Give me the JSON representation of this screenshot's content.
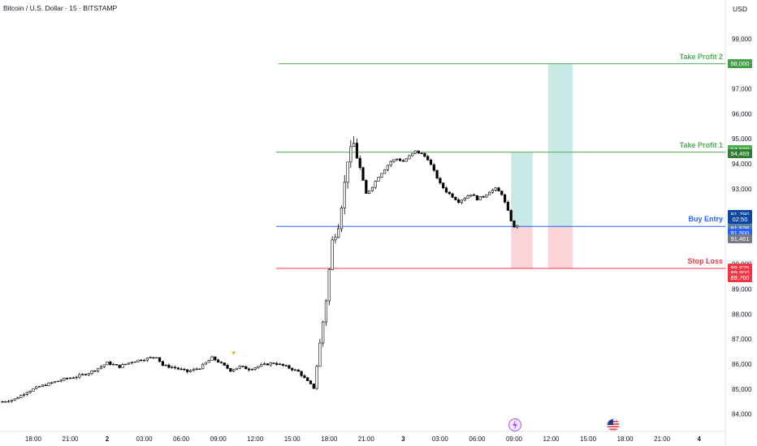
{
  "header": {
    "symbol_title": "Bitcoin / U.S. Dollar · 15 · BITSTAMP",
    "currency": "USD"
  },
  "colors": {
    "up": "#ffffff",
    "down": "#000000",
    "take_profit": "#4caf50",
    "buy_entry": "#2962ff",
    "stop_loss": "#f23645",
    "profit_zone": "rgba(38,166,154,0.25)",
    "loss_zone": "rgba(242,54,69,0.22)"
  },
  "levels": {
    "take_profit_2": {
      "label": "Take Profit 2",
      "price": 98000
    },
    "take_profit_1": {
      "label": "Take Profit 1",
      "price": 94469
    },
    "buy_entry": {
      "label": "Buy Entry",
      "price": 91500
    },
    "stop_loss": {
      "label": "Stop Loss",
      "price": 89825
    }
  },
  "price_tags": [
    {
      "text": "98,001",
      "price": 98001,
      "color": "#4caf50"
    },
    {
      "text": "98,000",
      "price": 97990,
      "color": "#43a047"
    },
    {
      "text": "94,500",
      "price": 94560,
      "color": "#4caf50"
    },
    {
      "text": "94,469",
      "price": 94420,
      "color": "#2e7d32"
    },
    {
      "text": "91,790",
      "price": 91980,
      "color": "#0d47a1"
    },
    {
      "text": "02:50",
      "price": 91770,
      "color": "#0d47a1"
    },
    {
      "text": "91,526",
      "price": 91430,
      "color": "#5b7fa8"
    },
    {
      "text": "91,500",
      "price": 91230,
      "color": "#2962ff"
    },
    {
      "text": "91,461",
      "price": 91020,
      "color": "#787b86"
    },
    {
      "text": "89,825",
      "price": 89855,
      "color": "#f23645"
    },
    {
      "text": "89,800",
      "price": 89650,
      "color": "#f23645"
    },
    {
      "text": "89,760",
      "price": 89445,
      "color": "#f23645"
    }
  ],
  "chart_data": {
    "type": "candlestick",
    "title": "Bitcoin / U.S. Dollar · 15 · BITSTAMP",
    "y_axis_ticks": [
      "99,000",
      "98,000",
      "97,000",
      "96,000",
      "95,000",
      "94,000",
      "93,000",
      "92,000",
      "91,000",
      "90,000",
      "89,000",
      "88,000",
      "87,000",
      "86,000",
      "85,000",
      "84,000"
    ],
    "y_axis_values": [
      99000,
      98000,
      97000,
      96000,
      95000,
      94000,
      93000,
      92000,
      91000,
      90000,
      89000,
      88000,
      87000,
      86000,
      85000,
      84000
    ],
    "ylim": [
      83700,
      99900
    ],
    "x_axis_ticks": [
      "18:00",
      "21:00",
      "2",
      "03:00",
      "06:00",
      "09:00",
      "12:00",
      "15:00",
      "18:00",
      "21:00",
      "3",
      "03:00",
      "06:00",
      "09:00",
      "12:00",
      "15:00",
      "18:00",
      "21:00",
      "4"
    ],
    "x_tick_slots": [
      10,
      22,
      34,
      46,
      58,
      70,
      82,
      94,
      106,
      118,
      130,
      142,
      154,
      166,
      178,
      190,
      202,
      214,
      226
    ],
    "bars_count": 168,
    "close_path": [
      [
        0,
        84500
      ],
      [
        4,
        84600
      ],
      [
        8,
        84900
      ],
      [
        12,
        85100
      ],
      [
        16,
        85250
      ],
      [
        20,
        85400
      ],
      [
        24,
        85500
      ],
      [
        28,
        85650
      ],
      [
        32,
        85900
      ],
      [
        34,
        86050
      ],
      [
        38,
        85900
      ],
      [
        42,
        86100
      ],
      [
        46,
        86200
      ],
      [
        50,
        86300
      ],
      [
        52,
        85950
      ],
      [
        56,
        85850
      ],
      [
        60,
        85700
      ],
      [
        64,
        85850
      ],
      [
        68,
        86250
      ],
      [
        70,
        86100
      ],
      [
        74,
        85750
      ],
      [
        77,
        85900
      ],
      [
        80,
        85800
      ],
      [
        84,
        85950
      ],
      [
        88,
        86050
      ],
      [
        92,
        85900
      ],
      [
        96,
        85700
      ],
      [
        99,
        85300
      ],
      [
        101,
        85050
      ],
      [
        103,
        86800
      ],
      [
        105,
        88600
      ],
      [
        107,
        90900
      ],
      [
        109,
        91600
      ],
      [
        111,
        93200
      ],
      [
        112,
        94200
      ],
      [
        114,
        94800
      ],
      [
        116,
        93800
      ],
      [
        118,
        92800
      ],
      [
        120,
        93100
      ],
      [
        122,
        93500
      ],
      [
        124,
        93800
      ],
      [
        126,
        94100
      ],
      [
        128,
        94200
      ],
      [
        130,
        94100
      ],
      [
        132,
        94300
      ],
      [
        134,
        94500
      ],
      [
        136,
        94400
      ],
      [
        138,
        94200
      ],
      [
        140,
        93700
      ],
      [
        142,
        93200
      ],
      [
        144,
        92900
      ],
      [
        146,
        92700
      ],
      [
        148,
        92500
      ],
      [
        150,
        92650
      ],
      [
        152,
        92800
      ],
      [
        154,
        92600
      ],
      [
        156,
        92700
      ],
      [
        158,
        92900
      ],
      [
        160,
        93000
      ],
      [
        162,
        92800
      ],
      [
        164,
        92100
      ],
      [
        165,
        91750
      ],
      [
        166,
        91450
      ],
      [
        167,
        91560
      ]
    ],
    "markers": [
      {
        "type": "dividend",
        "bar": 75,
        "price": 86500
      }
    ],
    "zones": [
      {
        "name": "position-1",
        "from_bar": 165,
        "to_bar": 172,
        "entry": 91500,
        "target": 94469,
        "stop": 89825
      },
      {
        "name": "position-2",
        "from_bar": 177,
        "to_bar": 185,
        "entry": 91500,
        "target": 98000,
        "stop": 89825
      }
    ],
    "events": [
      {
        "name": "lightning-event",
        "slot": 166
      },
      {
        "name": "us-flag-event",
        "slot": 198
      }
    ],
    "grid": false
  }
}
